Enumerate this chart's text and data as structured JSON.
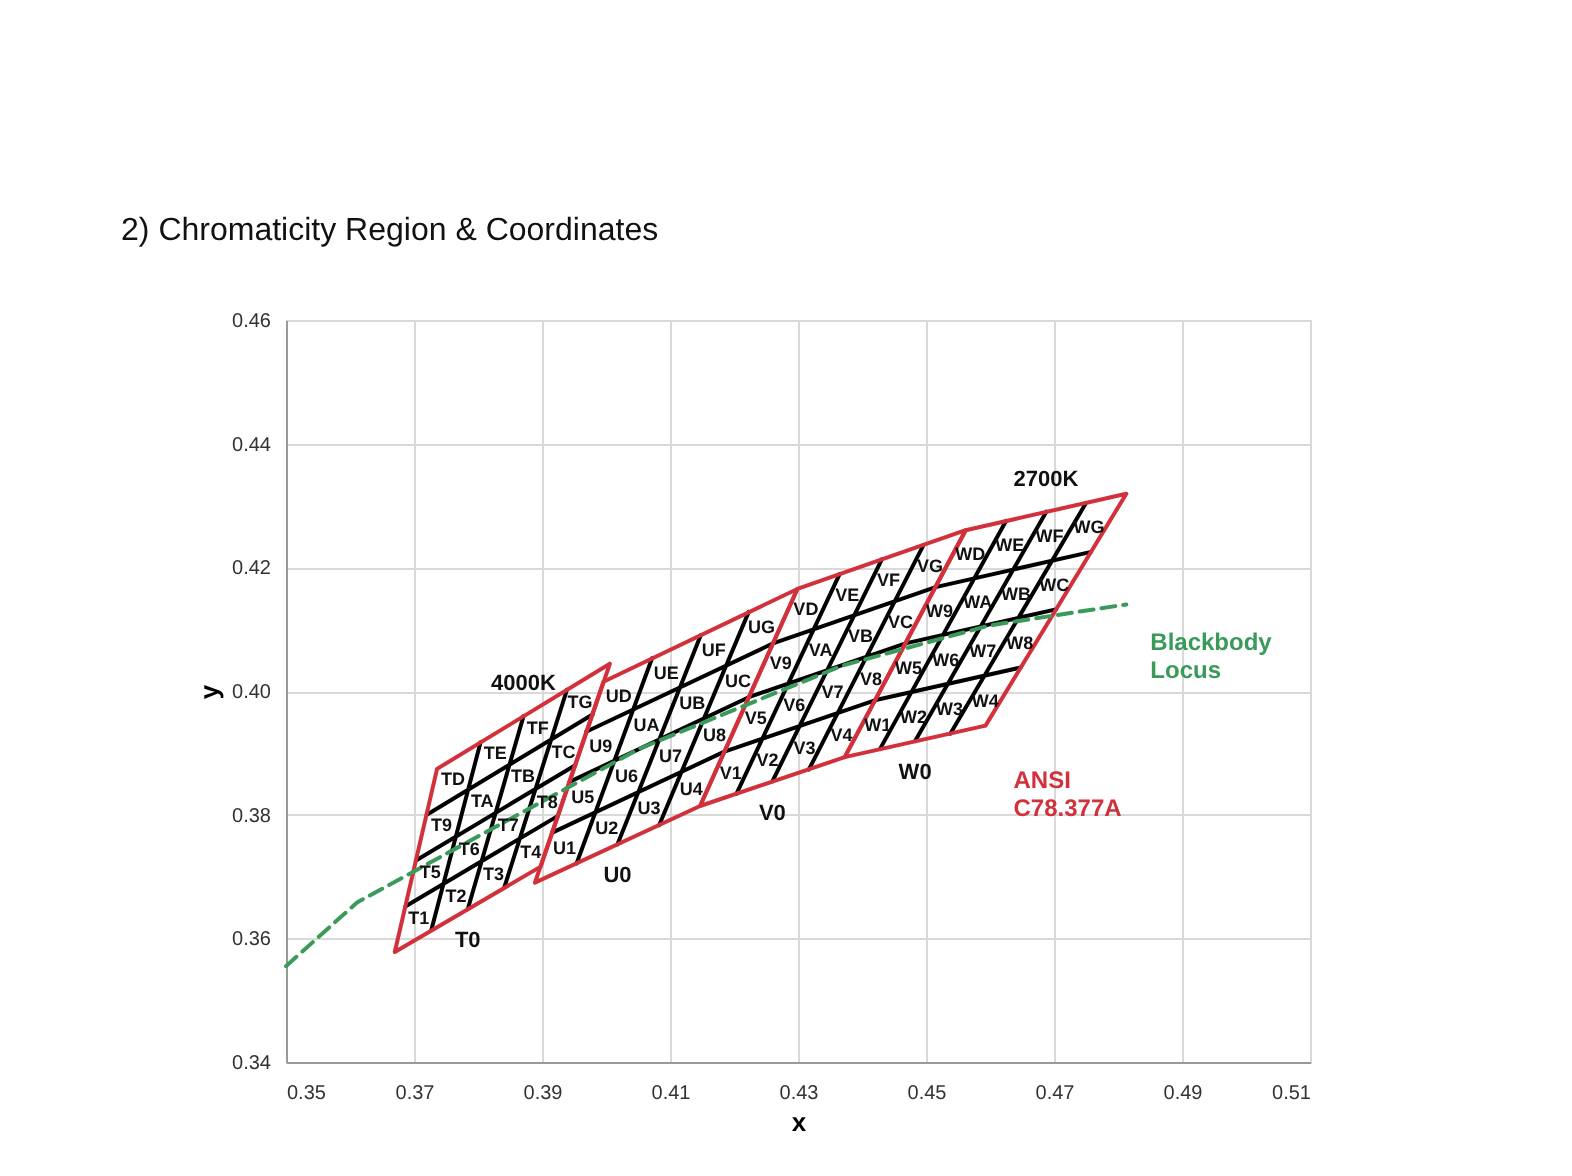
{
  "chart_data": {
    "type": "line",
    "title": "2) Chromaticity Region & Coordinates",
    "xlabel": "x",
    "ylabel": "y",
    "xlim": [
      0.35,
      0.51
    ],
    "xticks": [
      0.35,
      0.37,
      0.39,
      0.41,
      0.43,
      0.45,
      0.47,
      0.49,
      0.51
    ],
    "ylim": [
      0.34,
      0.46
    ],
    "yticks": [
      0.34,
      0.36,
      0.38,
      {
        "value": 0.4,
        "label": "0.40"
      },
      0.42,
      0.44,
      0.46
    ],
    "grid": true,
    "series": [
      {
        "color": "#000000",
        "line_style": "solid",
        "x": [
          0.3727,
          0.3804,
          null,
          0.3784,
          0.3871,
          null,
          0.3841,
          0.3939,
          null,
          0.3687,
          0.3925,
          null,
          0.3703,
          0.3952,
          null,
          0.372,
          0.3979,
          null,
          0.3954,
          0.4072,
          null,
          0.4018,
          0.4148,
          null,
          0.4083,
          0.4223,
          null,
          0.3916,
          0.4185,
          null,
          0.3943,
          0.4223,
          null,
          0.3969,
          0.4261,
          null,
          0.4204,
          0.4365,
          null,
          0.426,
          0.4431,
          null,
          0.4317,
          0.4496,
          null,
          0.4185,
          0.442,
          null,
          0.4223,
          0.4468,
          null,
          0.4261,
          0.4515,
          null,
          0.4428,
          0.4625,
          null,
          0.4483,
          0.4688,
          null,
          0.4538,
          0.475,
          null,
          0.442,
          0.4648,
          null,
          0.4468,
          0.4703,
          null,
          0.4515,
          0.4758
        ],
        "values": [
          0.3613,
          0.3917,
          null,
          0.3647,
          0.3959,
          null,
          0.3682,
          0.4002,
          null,
          0.3652,
          0.3798,
          null,
          0.3726,
          0.388,
          null,
          0.38,
          0.3962,
          null,
          0.3721,
          0.4053,
          null,
          0.3752,
          0.409,
          null,
          0.3783,
          0.4128,
          null,
          0.3771,
          0.3902,
          null,
          0.3853,
          0.399,
          null,
          0.3934,
          0.4077,
          null,
          0.3834,
          0.4189,
          null,
          0.3854,
          0.4213,
          null,
          0.3873,
          0.4236,
          null,
          0.3902,
          0.3985,
          null,
          0.399,
          0.4077,
          null,
          0.4077,
          0.4168,
          null,
          0.3906,
          0.4275,
          null,
          0.3919,
          0.429,
          null,
          0.3931,
          0.4304,
          null,
          0.3985,
          0.4038,
          null,
          0.4077,
          0.4132,
          null,
          0.4168,
          0.4225
        ]
      },
      {
        "color": "#d2313c",
        "line_style": "solid",
        "x": [
          0.367,
          0.3898,
          null,
          0.3898,
          0.4006,
          null,
          0.4006,
          0.3736,
          null,
          0.3736,
          0.367
        ],
        "values": [
          0.3578,
          0.3716,
          null,
          0.3716,
          0.4044,
          null,
          0.4044,
          0.3874,
          null,
          0.3874,
          0.3578
        ]
      },
      {
        "color": "#d2313c",
        "line_style": "solid",
        "x": [
          0.3889,
          0.4147,
          null,
          0.4147,
          0.4299,
          null,
          0.4299,
          0.3996,
          null,
          0.3996,
          0.3889
        ],
        "values": [
          0.369,
          0.3814,
          null,
          0.3814,
          0.4165,
          null,
          0.4165,
          0.4015,
          null,
          0.4015,
          0.369
        ]
      },
      {
        "color": "#d2313c",
        "line_style": "solid",
        "x": [
          0.4147,
          0.4373,
          null,
          0.4373,
          0.4562,
          null,
          0.4562,
          0.4299,
          null,
          0.4299,
          0.4147
        ],
        "values": [
          0.3814,
          0.3893,
          null,
          0.3893,
          0.426,
          null,
          0.426,
          0.4165,
          null,
          0.4165,
          0.3814
        ]
      },
      {
        "name": "ANSI C78.377A",
        "color": "#d2313c",
        "line_style": "solid",
        "x": [
          0.4373,
          0.4593,
          null,
          0.4593,
          0.4813,
          null,
          0.4813,
          0.4562,
          null,
          0.4562,
          0.4373
        ],
        "values": [
          0.3893,
          0.3944,
          null,
          0.3944,
          0.4319,
          null,
          0.4319,
          0.426,
          null,
          0.426,
          0.3893
        ]
      },
      {
        "name": "Blackbody Locus",
        "color": "#3a9a5a",
        "line_style": "dashed",
        "x": [
          0.35,
          0.3611,
          0.3804,
          0.4053,
          0.4369,
          0.4599,
          0.4813
        ],
        "values": [
          0.3555,
          0.3658,
          0.3767,
          0.3907,
          0.4041,
          0.4106,
          0.414
        ]
      }
    ],
    "annotations": [
      "T1",
      "T2",
      "T3",
      "T4",
      "T5",
      "T6",
      "T7",
      "T8",
      "T9",
      "TA",
      "TB",
      "TC",
      "TD",
      "TE",
      "TF",
      "TG",
      "U1",
      "U2",
      "U3",
      "U4",
      "U5",
      "U6",
      "U7",
      "U8",
      "U9",
      "UA",
      "UB",
      "UC",
      "UD",
      "UE",
      "UF",
      "UG",
      "V1",
      "V2",
      "V3",
      "V4",
      "V5",
      "V6",
      "V7",
      "V8",
      "V9",
      "VA",
      "VB",
      "VC",
      "VD",
      "VE",
      "VF",
      "VG",
      "W1",
      "W2",
      "W3",
      "W4",
      "W5",
      "W6",
      "W7",
      "W8",
      "W9",
      "WA",
      "WB",
      "WC",
      "WD",
      "WE",
      "WF",
      "WG",
      "T0",
      "U0",
      "V0",
      "W0",
      "4000K",
      "2700K"
    ]
  }
}
